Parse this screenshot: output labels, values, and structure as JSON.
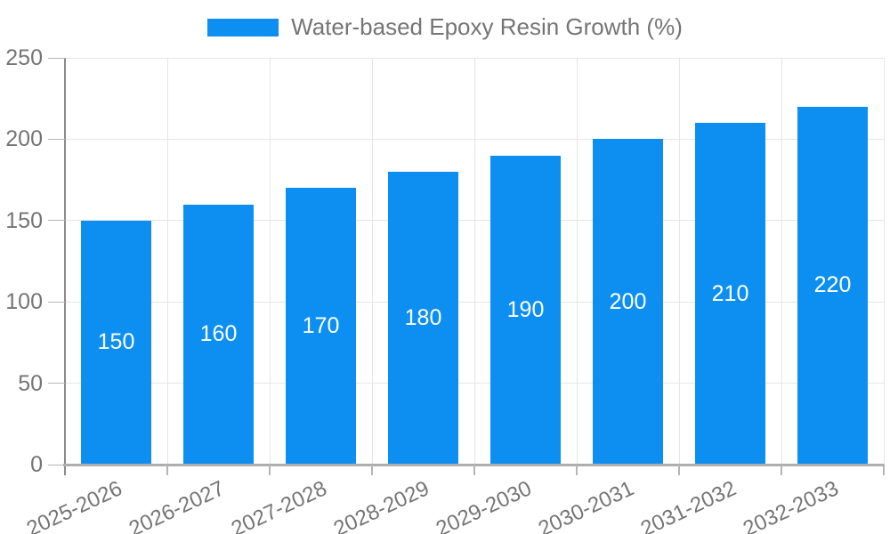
{
  "chart_data": {
    "type": "bar",
    "title": "",
    "legend_position": "top",
    "categories": [
      "2025-2026",
      "2026-2027",
      "2027-2028",
      "2028-2029",
      "2029-2030",
      "2030-2031",
      "2031-2032",
      "2032-2033"
    ],
    "series": [
      {
        "name": "Water-based Epoxy Resin Growth (%)",
        "values": [
          150,
          160,
          170,
          180,
          190,
          200,
          210,
          220
        ]
      }
    ],
    "bar_value_labels": [
      "150",
      "160",
      "170",
      "180",
      "190",
      "200",
      "210",
      "220"
    ],
    "ylim": [
      0,
      250
    ],
    "yticks": [
      0,
      50,
      100,
      150,
      200,
      250
    ],
    "grid": true,
    "colors": {
      "bar": "#0d8ff2",
      "bar_label": "#ffffff",
      "axis_text": "#757575",
      "gridline": "#e6e6e6",
      "y_axis_line": "#8a8a8a",
      "x_axis_line": "#adadad",
      "tick": "#b5b5b5",
      "background": "#ffffff"
    }
  }
}
